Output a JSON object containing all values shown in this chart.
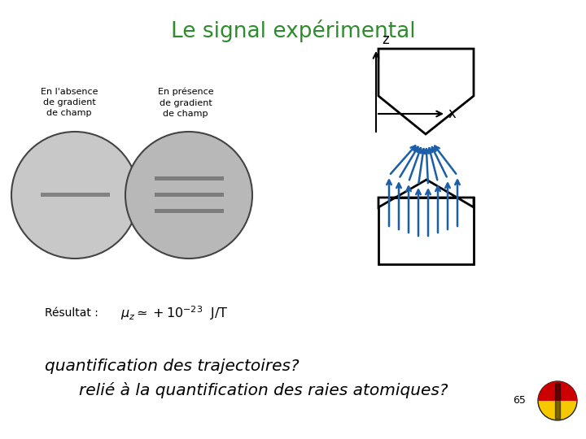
{
  "title": "Le signal expérimental",
  "title_color": "#2e8b2e",
  "title_fontsize": 19,
  "line1": "quantification des trajectoires?",
  "line2": "relié à la quantification des raies atomiques?",
  "page_number": "65",
  "text_color": "#000000",
  "text_fontsize": 14.5,
  "bg_color": "#ffffff",
  "resultat_label": "Résultat :",
  "arrow_color": "#1a5fa8"
}
